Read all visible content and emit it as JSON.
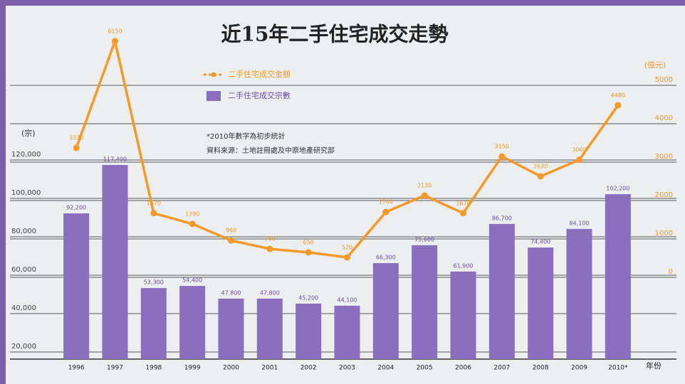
{
  "chart_data": {
    "type": "bar-line",
    "title": "近15年二手住宅成交走勢",
    "y_label": "(宗)",
    "y2_label": "(億元)",
    "x_label": "年份",
    "notes": [
      "*2010年數字為初步統計",
      "資料來源：土地註冊處及中原地產研究部"
    ],
    "categories": [
      "1996",
      "1997",
      "1998",
      "1999",
      "2000",
      "2001",
      "2002",
      "2003",
      "2004",
      "2005",
      "2006",
      "2007",
      "2008",
      "2009",
      "2010*"
    ],
    "series": [
      {
        "name": "二手住宅成交宗數",
        "type": "bar",
        "color": "#8a6fbf",
        "values": [
          92200,
          117400,
          53300,
          54400,
          47800,
          47800,
          45200,
          44100,
          66300,
          75600,
          61900,
          86700,
          74400,
          84100,
          102200
        ],
        "value_labels": [
          "92,200",
          "117,400",
          "53,300",
          "54,400",
          "47,800",
          "47,800",
          "45,200",
          "44,100",
          "66,300",
          "75,600",
          "61,900",
          "86,700",
          "74,400",
          "84,100",
          "102,200"
        ]
      },
      {
        "name": "二手住宅成交金額",
        "type": "line",
        "axis": "y2",
        "color": "#f59a2a",
        "values": [
          3370,
          6150,
          1670,
          1390,
          960,
          740,
          650,
          520,
          1700,
          2130,
          1670,
          3150,
          2630,
          3060,
          4480
        ],
        "value_labels": [
          "3370",
          "6150",
          "1670",
          "1390",
          "960",
          "740",
          "650",
          "520",
          "1700",
          "2130",
          "1670",
          "3150",
          "2630",
          "3060",
          "4480"
        ]
      }
    ],
    "ylim": [
      16300,
      184800
    ],
    "yticks": [
      {
        "value": 20000,
        "label": "20,000"
      },
      {
        "value": 40000,
        "label": "40,000"
      },
      {
        "value": 60000,
        "label": "60,000"
      },
      {
        "value": 80000,
        "label": "80,000"
      },
      {
        "value": 100000,
        "label": "100,000"
      },
      {
        "value": 120000,
        "label": "120,000"
      }
    ],
    "y2lim": [
      -2130,
      6296
    ],
    "y2ticks": [
      0,
      1000,
      2000,
      3000,
      4000,
      5000
    ],
    "grid": true
  }
}
